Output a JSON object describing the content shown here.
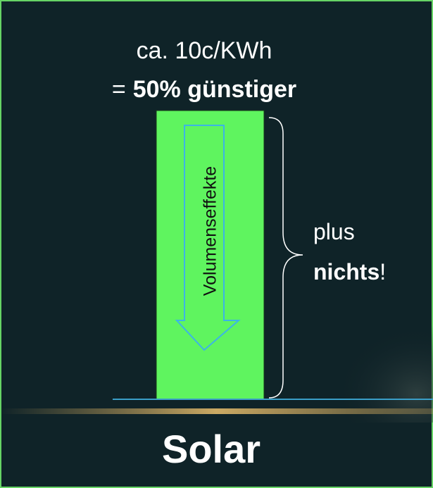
{
  "header": {
    "price": "ca. 10c/KWh",
    "equals": "=",
    "saving": "50% günstiger"
  },
  "bar": {
    "arrow_label": "Volumenseffekte"
  },
  "brace": {
    "prefix": "plus",
    "emphasis": "nichts",
    "suffix": "!"
  },
  "footer": {
    "label": "Solar"
  }
}
